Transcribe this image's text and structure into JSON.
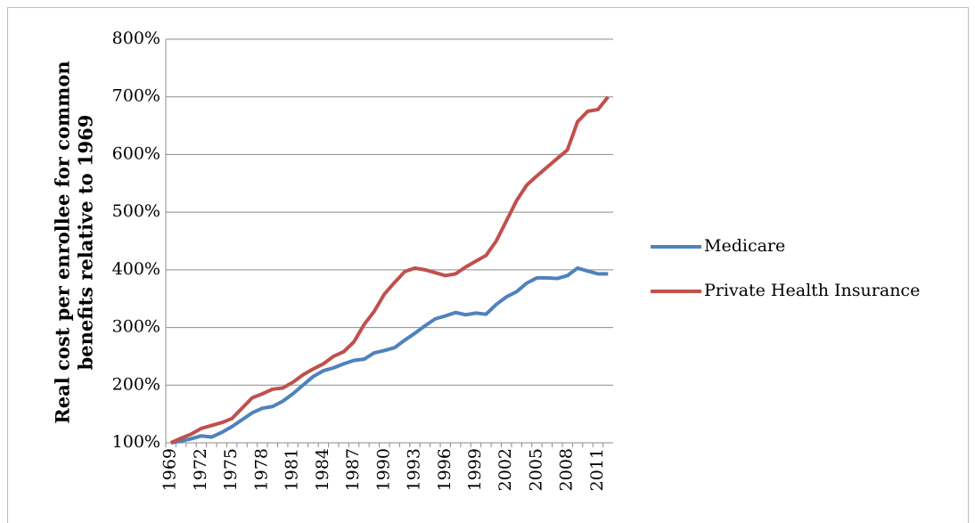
{
  "chart_data": {
    "type": "line",
    "ylabel": [
      "Real cost per enrollee for common",
      "benefits relative to 1969"
    ],
    "categories": [
      "1969",
      null,
      null,
      "1972",
      null,
      null,
      "1975",
      null,
      null,
      "1978",
      null,
      null,
      "1981",
      null,
      null,
      "1984",
      null,
      null,
      "1987",
      null,
      null,
      "1990",
      null,
      null,
      "1993",
      null,
      null,
      "1996",
      null,
      null,
      "1999",
      null,
      null,
      "2002",
      null,
      null,
      "2005",
      null,
      null,
      "2008",
      null,
      null,
      "2011",
      null
    ],
    "series": [
      {
        "name": "Medicare",
        "color": "#4f81bd",
        "values": [
          100,
          103,
          107,
          112,
          110,
          118,
          128,
          140,
          152,
          160,
          163,
          172,
          185,
          200,
          215,
          225,
          230,
          237,
          243,
          245,
          256,
          260,
          265,
          278,
          290,
          303,
          315,
          320,
          326,
          322,
          325,
          323,
          340,
          353,
          362,
          377,
          386,
          386,
          385,
          390,
          403,
          398,
          393,
          393
        ]
      },
      {
        "name": "Private Health Insurance",
        "color": "#c0504d",
        "values": [
          100,
          108,
          115,
          125,
          130,
          135,
          142,
          160,
          178,
          185,
          193,
          195,
          205,
          218,
          228,
          237,
          250,
          258,
          275,
          305,
          328,
          358,
          378,
          397,
          403,
          400,
          395,
          390,
          393,
          405,
          415,
          425,
          450,
          485,
          520,
          547,
          563,
          578,
          593,
          608,
          657,
          675,
          678,
          700
        ]
      }
    ],
    "ylim": [
      100,
      800
    ],
    "yticks": [
      {
        "value": 100,
        "label": "100%"
      },
      {
        "value": 200,
        "label": "200%"
      },
      {
        "value": 300,
        "label": "300%"
      },
      {
        "value": 400,
        "label": "400%"
      },
      {
        "value": 500,
        "label": "500%"
      },
      {
        "value": 600,
        "label": "600%"
      },
      {
        "value": 700,
        "label": "700%"
      },
      {
        "value": 800,
        "label": "800%"
      }
    ],
    "grid": true,
    "legend": "right"
  }
}
